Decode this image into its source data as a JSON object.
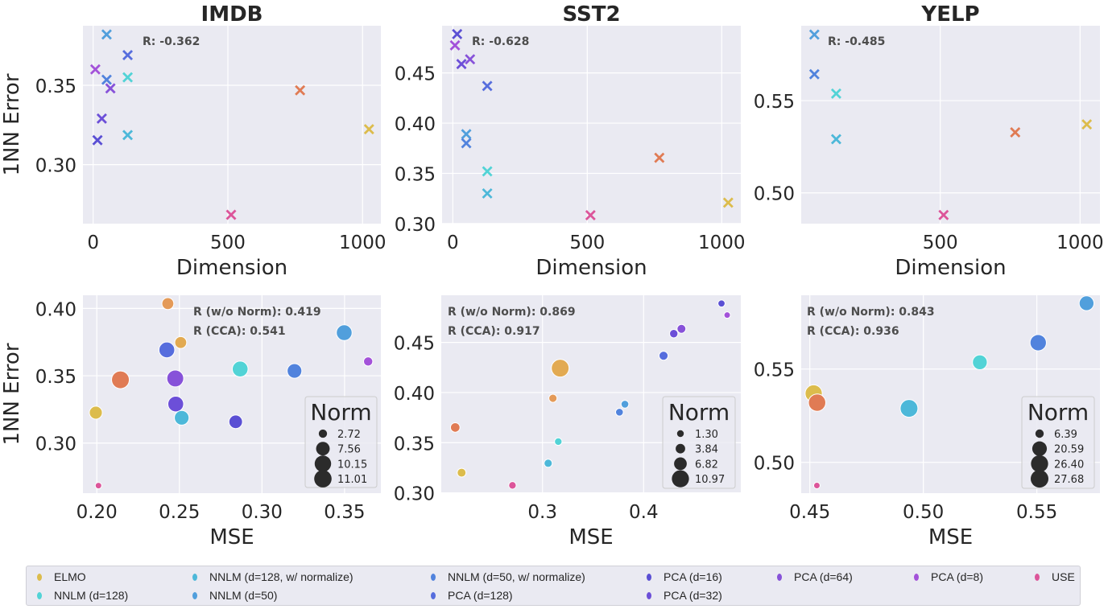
{
  "series": [
    {
      "name": "ELMO",
      "color": "#dcbc4c"
    },
    {
      "name": "NNLM (d=128)",
      "color": "#52d3d6"
    },
    {
      "name": "NNLM (d=128, w/ normalize)",
      "color": "#4db8d9"
    },
    {
      "name": "NNLM (d=50)",
      "color": "#519fdc"
    },
    {
      "name": "NNLM (d=50, w/ normalize)",
      "color": "#5183dd"
    },
    {
      "name": "PCA (d=128)",
      "color": "#566ddd"
    },
    {
      "name": "PCA (d=16)",
      "color": "#5a4fd4"
    },
    {
      "name": "PCA (d=32)",
      "color": "#6c4fd8"
    },
    {
      "name": "PCA (d=64)",
      "color": "#8752d9"
    },
    {
      "name": "PCA (d=8)",
      "color": "#a352d9"
    },
    {
      "name": "USE",
      "color": "#dc559a"
    },
    {
      "color": "#e07b54"
    },
    {
      "color": "#e49a58"
    },
    {
      "color": "#e2aa52"
    }
  ],
  "legend_order": [
    0,
    1,
    2,
    3,
    4,
    5,
    6,
    7,
    8,
    9,
    10
  ],
  "style": {
    "background": "#eaeaf2",
    "grid": "#ffffff"
  },
  "chart_data": [
    {
      "type": "scatter",
      "marker": "x",
      "title": "IMDB",
      "xlabel": "Dimension",
      "ylabel": "1NN Error",
      "xlim": [
        -38,
        1068
      ],
      "ylim": [
        0.2628,
        0.3875
      ],
      "grid": true,
      "xticks": [
        0,
        500,
        1000
      ],
      "xticklabels": [
        "0",
        "500",
        "1000"
      ],
      "yticks": [
        0.3,
        0.35
      ],
      "yticklabels": [
        "0.30",
        "0.35"
      ],
      "annotations": [
        "R: -0.362"
      ],
      "points": [
        {
          "s": 3,
          "x": 50,
          "y": 0.382
        },
        {
          "s": 5,
          "x": 128,
          "y": 0.369
        },
        {
          "s": 9,
          "x": 8,
          "y": 0.36
        },
        {
          "s": 4,
          "x": 50,
          "y": 0.3535
        },
        {
          "s": 1,
          "x": 128,
          "y": 0.355
        },
        {
          "s": 8,
          "x": 64,
          "y": 0.348
        },
        {
          "s": 11,
          "x": 768,
          "y": 0.3468
        },
        {
          "s": 7,
          "x": 32,
          "y": 0.329
        },
        {
          "s": 0,
          "x": 1024,
          "y": 0.3223
        },
        {
          "s": 2,
          "x": 128,
          "y": 0.3186
        },
        {
          "s": 6,
          "x": 16,
          "y": 0.3154
        },
        {
          "s": 10,
          "x": 512,
          "y": 0.2684
        }
      ]
    },
    {
      "type": "scatter",
      "marker": "x",
      "title": "SST2",
      "xlabel": "Dimension",
      "ylabel": "",
      "xlim": [
        -40,
        1071
      ],
      "ylim": [
        0.2999,
        0.497
      ],
      "grid": true,
      "xticks": [
        0,
        500,
        1000
      ],
      "xticklabels": [
        "0",
        "500",
        "1000"
      ],
      "yticks": [
        0.3,
        0.35,
        0.4,
        0.45
      ],
      "yticklabels": [
        "0.30",
        "0.35",
        "0.40",
        "0.45"
      ],
      "annotations": [
        "R: -0.628"
      ],
      "points": [
        {
          "s": 6,
          "x": 16,
          "y": 0.4887
        },
        {
          "s": 9,
          "x": 8,
          "y": 0.4775
        },
        {
          "s": 7,
          "x": 32,
          "y": 0.4588
        },
        {
          "s": 8,
          "x": 64,
          "y": 0.4636
        },
        {
          "s": 5,
          "x": 128,
          "y": 0.437
        },
        {
          "s": 3,
          "x": 50,
          "y": 0.389
        },
        {
          "s": 4,
          "x": 50,
          "y": 0.38
        },
        {
          "s": 1,
          "x": 128,
          "y": 0.352
        },
        {
          "s": 2,
          "x": 128,
          "y": 0.33
        },
        {
          "s": 11,
          "x": 768,
          "y": 0.3655
        },
        {
          "s": 0,
          "x": 1024,
          "y": 0.3208
        },
        {
          "s": 10,
          "x": 512,
          "y": 0.3083
        }
      ]
    },
    {
      "type": "scatter",
      "marker": "x",
      "title": "YELP",
      "xlabel": "Dimension",
      "ylabel": "",
      "xlim": [
        3,
        1071
      ],
      "ylim": [
        0.4833,
        0.5906
      ],
      "grid": true,
      "xticks": [
        500,
        1000
      ],
      "xticklabels": [
        "500",
        "1000"
      ],
      "yticks": [
        0.5,
        0.55
      ],
      "yticklabels": [
        "0.50",
        "0.55"
      ],
      "annotations": [
        "R: -0.485"
      ],
      "points": [
        {
          "s": 3,
          "x": 50,
          "y": 0.5858
        },
        {
          "s": 4,
          "x": 50,
          "y": 0.5643
        },
        {
          "s": 1,
          "x": 128,
          "y": 0.5538
        },
        {
          "s": 2,
          "x": 128,
          "y": 0.5291
        },
        {
          "s": 11,
          "x": 768,
          "y": 0.5328
        },
        {
          "s": 0,
          "x": 1024,
          "y": 0.5371
        },
        {
          "s": 10,
          "x": 512,
          "y": 0.488
        }
      ]
    },
    {
      "type": "scatter",
      "marker": "circle",
      "title": "",
      "xlabel": "MSE",
      "ylabel": "1NN Error",
      "xlim": [
        0.1916,
        0.372
      ],
      "ylim": [
        0.2628,
        0.4098
      ],
      "grid": true,
      "xticks": [
        0.2,
        0.25,
        0.3,
        0.35
      ],
      "xticklabels": [
        "0.20",
        "0.25",
        "0.30",
        "0.35"
      ],
      "yticks": [
        0.3,
        0.35,
        0.4
      ],
      "yticklabels": [
        "0.30",
        "0.35",
        "0.40"
      ],
      "annotations": [
        "R (w/o Norm): 0.419",
        "R (CCA): 0.541"
      ],
      "size_legend": {
        "title": "Norm",
        "values": [
          2.72,
          7.56,
          10.15,
          11.01
        ],
        "labels": [
          "2.72",
          "7.56",
          "10.15",
          "11.01"
        ]
      },
      "points": [
        {
          "s": 12,
          "x": 0.243,
          "y": 0.4036,
          "norm": 6.0
        },
        {
          "s": 13,
          "x": 0.2508,
          "y": 0.3747,
          "norm": 6.0
        },
        {
          "s": 5,
          "x": 0.2424,
          "y": 0.3692,
          "norm": 9.5
        },
        {
          "s": 3,
          "x": 0.3498,
          "y": 0.382,
          "norm": 9.5
        },
        {
          "s": 9,
          "x": 0.3643,
          "y": 0.3606,
          "norm": 3.5
        },
        {
          "s": 1,
          "x": 0.2868,
          "y": 0.355,
          "norm": 9.5
        },
        {
          "s": 4,
          "x": 0.3197,
          "y": 0.3536,
          "norm": 8.5
        },
        {
          "s": 11,
          "x": 0.2143,
          "y": 0.347,
          "norm": 11.3
        },
        {
          "s": 8,
          "x": 0.2475,
          "y": 0.348,
          "norm": 10.5
        },
        {
          "s": 7,
          "x": 0.2478,
          "y": 0.329,
          "norm": 9.5
        },
        {
          "s": 0,
          "x": 0.1994,
          "y": 0.3226,
          "norm": 7.0
        },
        {
          "s": 2,
          "x": 0.2514,
          "y": 0.3188,
          "norm": 8.5
        },
        {
          "s": 6,
          "x": 0.2841,
          "y": 0.3158,
          "norm": 7.5
        },
        {
          "s": 10,
          "x": 0.201,
          "y": 0.2684,
          "norm": 1.0
        }
      ]
    },
    {
      "type": "scatter",
      "marker": "circle",
      "title": "",
      "xlabel": "MSE",
      "ylabel": "",
      "xlim": [
        0.1999,
        0.4961
      ],
      "ylim": [
        0.2997,
        0.497
      ],
      "grid": true,
      "xticks": [
        0.3,
        0.4
      ],
      "xticklabels": [
        "0.3",
        "0.4"
      ],
      "yticks": [
        0.3,
        0.35,
        0.4,
        0.45
      ],
      "yticklabels": [
        "0.30",
        "0.35",
        "0.40",
        "0.45"
      ],
      "annotations": [
        "R (w/o Norm): 0.869",
        "R (CCA): 0.917"
      ],
      "size_legend": {
        "title": "Norm",
        "values": [
          1.3,
          3.84,
          6.82,
          10.97
        ],
        "labels": [
          "1.30",
          "3.84",
          "6.82",
          "10.97"
        ]
      },
      "points": [
        {
          "s": 6,
          "x": 0.477,
          "y": 0.4888,
          "norm": 1.6
        },
        {
          "s": 9,
          "x": 0.4826,
          "y": 0.4772,
          "norm": 1.0
        },
        {
          "s": 8,
          "x": 0.4374,
          "y": 0.4635,
          "norm": 3.2
        },
        {
          "s": 7,
          "x": 0.4298,
          "y": 0.4587,
          "norm": 2.8
        },
        {
          "s": 5,
          "x": 0.4197,
          "y": 0.4367,
          "norm": 3.4
        },
        {
          "s": 13,
          "x": 0.3175,
          "y": 0.4243,
          "norm": 11.5
        },
        {
          "s": 12,
          "x": 0.3103,
          "y": 0.3943,
          "norm": 2.6
        },
        {
          "s": 3,
          "x": 0.3815,
          "y": 0.3884,
          "norm": 2.2
        },
        {
          "s": 4,
          "x": 0.3761,
          "y": 0.3804,
          "norm": 2.2
        },
        {
          "s": 11,
          "x": 0.2137,
          "y": 0.3652,
          "norm": 3.8
        },
        {
          "s": 1,
          "x": 0.3156,
          "y": 0.3511,
          "norm": 2.0
        },
        {
          "s": 2,
          "x": 0.3056,
          "y": 0.3295,
          "norm": 2.6
        },
        {
          "s": 0,
          "x": 0.22,
          "y": 0.3201,
          "norm": 3.2
        },
        {
          "s": 10,
          "x": 0.2703,
          "y": 0.3075,
          "norm": 2.0
        }
      ]
    },
    {
      "type": "scatter",
      "marker": "circle",
      "title": "",
      "xlabel": "MSE",
      "ylabel": "",
      "xlim": [
        0.4462,
        0.5778
      ],
      "ylim": [
        0.4835,
        0.5895
      ],
      "grid": true,
      "xticks": [
        0.45,
        0.5,
        0.55
      ],
      "xticklabels": [
        "0.45",
        "0.50",
        "0.55"
      ],
      "yticks": [
        0.5,
        0.55
      ],
      "yticklabels": [
        "0.50",
        "0.55"
      ],
      "annotations": [
        "R (w/o Norm): 0.843",
        "R (CCA): 0.936"
      ],
      "size_legend": {
        "title": "Norm",
        "values": [
          6.39,
          20.59,
          26.4,
          27.68
        ],
        "labels": [
          "6.39",
          "20.59",
          "26.40",
          "27.68"
        ]
      },
      "points": [
        {
          "s": 3,
          "x": 0.5719,
          "y": 0.5852,
          "norm": 21.0
        },
        {
          "s": 4,
          "x": 0.5506,
          "y": 0.5641,
          "norm": 24.5
        },
        {
          "s": 1,
          "x": 0.5249,
          "y": 0.5536,
          "norm": 21.0
        },
        {
          "s": 0,
          "x": 0.4517,
          "y": 0.5369,
          "norm": 26.4
        },
        {
          "s": 11,
          "x": 0.4532,
          "y": 0.532,
          "norm": 26.8
        },
        {
          "s": 2,
          "x": 0.4937,
          "y": 0.5289,
          "norm": 27.7
        },
        {
          "s": 10,
          "x": 0.4531,
          "y": 0.4876,
          "norm": 2.0
        }
      ]
    }
  ]
}
